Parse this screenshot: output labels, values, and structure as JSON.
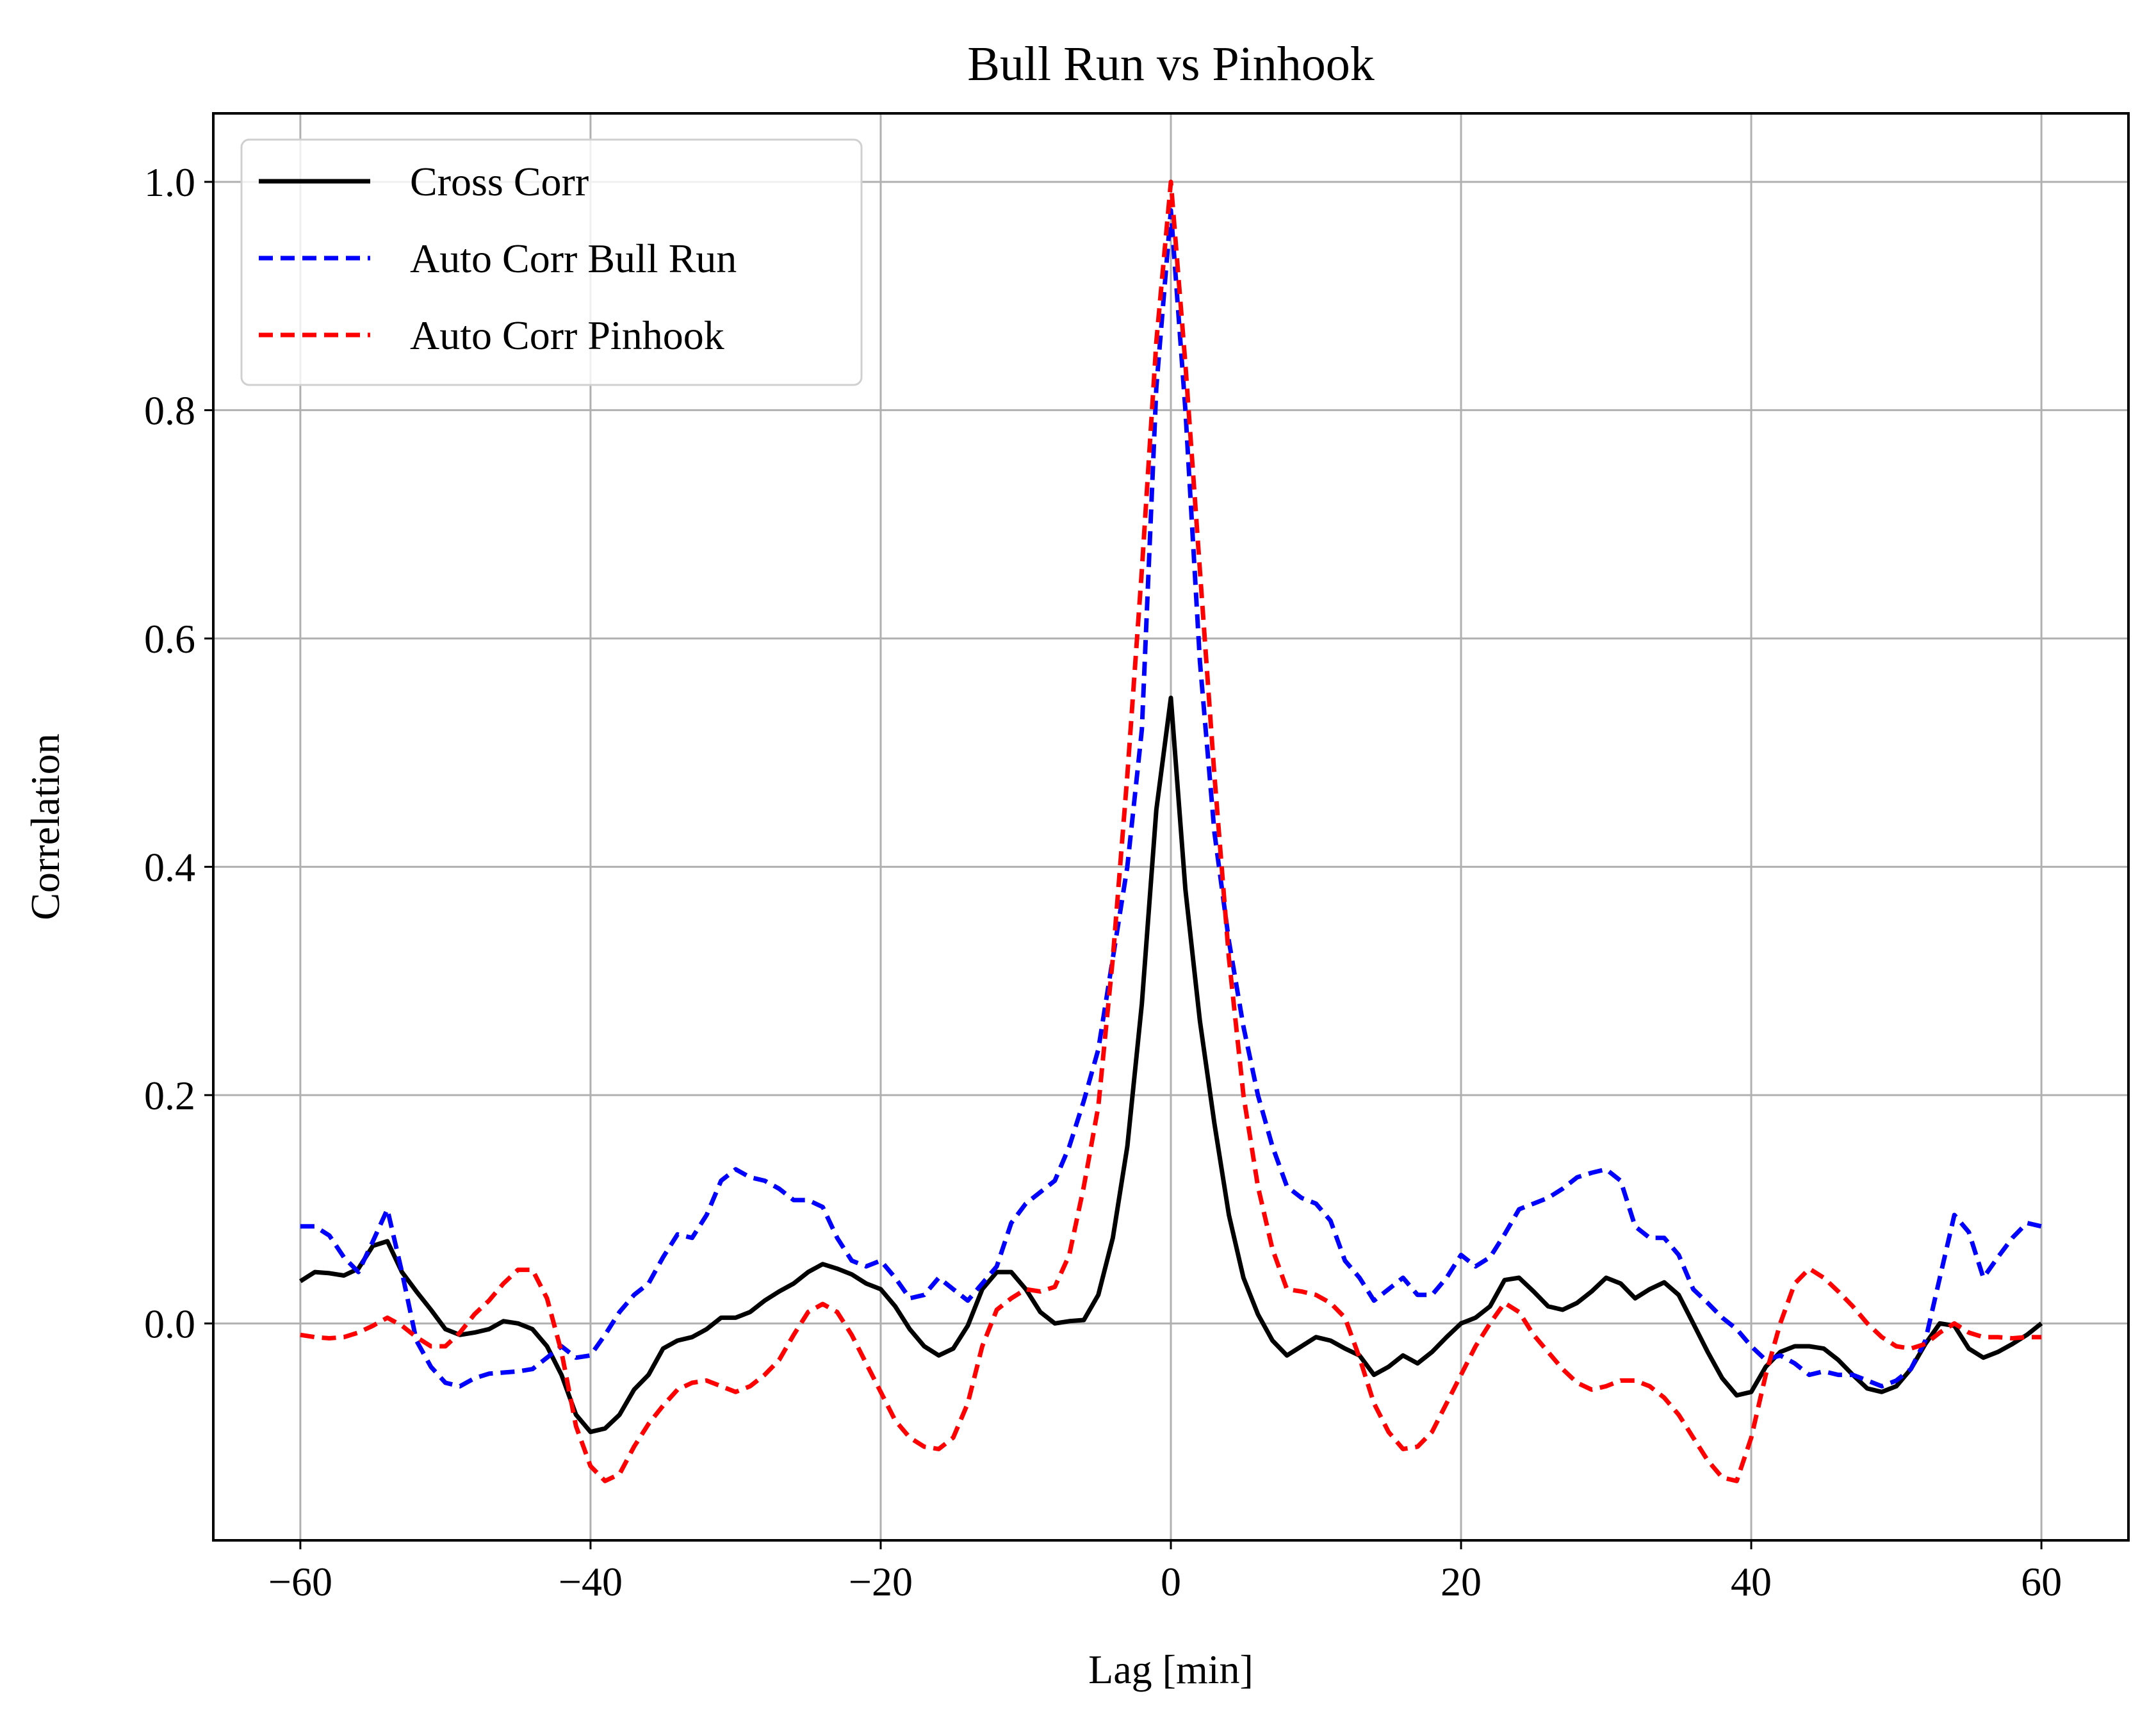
{
  "chart_data": {
    "type": "line",
    "title": "Bull Run vs Pinhook",
    "xlabel": "Lag [min]",
    "ylabel": "Correlation",
    "xlim": [
      -66,
      66
    ],
    "ylim": [
      -0.19,
      1.06
    ],
    "xticks": [
      -60,
      -40,
      -20,
      0,
      20,
      40,
      60
    ],
    "xtick_labels": [
      "−60",
      "−40",
      "−20",
      "0",
      "20",
      "40",
      "60"
    ],
    "yticks": [
      0.0,
      0.2,
      0.4,
      0.6,
      0.8,
      1.0
    ],
    "ytick_labels": [
      "0.0",
      "0.2",
      "0.4",
      "0.6",
      "0.8",
      "1.0"
    ],
    "grid": true,
    "legend_position": "upper-left",
    "series": [
      {
        "name": "Cross Corr",
        "color": "#000000",
        "style": "solid",
        "x": [
          -60,
          -59,
          -58,
          -57,
          -56,
          -55,
          -54,
          -53,
          -52,
          -51,
          -50,
          -49,
          -48,
          -47,
          -46,
          -45,
          -44,
          -43,
          -42,
          -41,
          -40,
          -39,
          -38,
          -37,
          -36,
          -35,
          -34,
          -33,
          -32,
          -31,
          -30,
          -29,
          -28,
          -27,
          -26,
          -25,
          -24,
          -23,
          -22,
          -21,
          -20,
          -19,
          -18,
          -17,
          -16,
          -15,
          -14,
          -13,
          -12,
          -11,
          -10,
          -9,
          -8,
          -7,
          -6,
          -5,
          -4,
          -3,
          -2,
          -1,
          0,
          1,
          2,
          3,
          4,
          5,
          6,
          7,
          8,
          9,
          10,
          11,
          12,
          13,
          14,
          15,
          16,
          17,
          18,
          19,
          20,
          21,
          22,
          23,
          24,
          25,
          26,
          27,
          28,
          29,
          30,
          31,
          32,
          33,
          34,
          35,
          36,
          37,
          38,
          39,
          40,
          41,
          42,
          43,
          44,
          45,
          46,
          47,
          48,
          49,
          50,
          51,
          52,
          53,
          54,
          55,
          56,
          57,
          58,
          59,
          60
        ],
        "y": [
          0.037,
          0.045,
          0.044,
          0.042,
          0.048,
          0.068,
          0.072,
          0.045,
          0.028,
          0.012,
          -0.005,
          -0.01,
          -0.008,
          -0.005,
          0.002,
          0.0,
          -0.005,
          -0.02,
          -0.045,
          -0.08,
          -0.095,
          -0.092,
          -0.08,
          -0.058,
          -0.045,
          -0.022,
          -0.015,
          -0.012,
          -0.005,
          0.005,
          0.005,
          0.01,
          0.02,
          0.028,
          0.035,
          0.045,
          0.052,
          0.048,
          0.043,
          0.035,
          0.03,
          0.015,
          -0.005,
          -0.02,
          -0.028,
          -0.022,
          -0.002,
          0.03,
          0.045,
          0.045,
          0.03,
          0.01,
          0.0,
          0.002,
          0.003,
          0.025,
          0.075,
          0.155,
          0.28,
          0.45,
          0.548,
          0.38,
          0.265,
          0.175,
          0.095,
          0.04,
          0.008,
          -0.015,
          -0.028,
          -0.02,
          -0.012,
          -0.015,
          -0.022,
          -0.028,
          -0.045,
          -0.038,
          -0.028,
          -0.035,
          -0.025,
          -0.012,
          0.0,
          0.005,
          0.015,
          0.038,
          0.04,
          0.028,
          0.015,
          0.012,
          0.018,
          0.028,
          0.04,
          0.035,
          0.022,
          0.03,
          0.036,
          0.025,
          0.0,
          -0.025,
          -0.048,
          -0.063,
          -0.06,
          -0.038,
          -0.025,
          -0.02,
          -0.02,
          -0.022,
          -0.032,
          -0.045,
          -0.057,
          -0.06,
          -0.055,
          -0.04,
          -0.018,
          0.0,
          -0.002,
          -0.022,
          -0.03,
          -0.025,
          -0.018,
          -0.01,
          0.0
        ]
      },
      {
        "name": "Auto Corr Bull Run",
        "color": "#0000ff",
        "style": "dashed",
        "x": [
          -60,
          -59,
          -58,
          -57,
          -56,
          -55,
          -54,
          -53,
          -52,
          -51,
          -50,
          -49,
          -48,
          -47,
          -46,
          -45,
          -44,
          -43,
          -42,
          -41,
          -40,
          -39,
          -38,
          -37,
          -36,
          -35,
          -34,
          -33,
          -32,
          -31,
          -30,
          -29,
          -28,
          -27,
          -26,
          -25,
          -24,
          -23,
          -22,
          -21,
          -20,
          -19,
          -18,
          -17,
          -16,
          -15,
          -14,
          -13,
          -12,
          -11,
          -10,
          -9,
          -8,
          -7,
          -6,
          -5,
          -4,
          -3,
          -2,
          -1,
          0,
          1,
          2,
          3,
          4,
          5,
          6,
          7,
          8,
          9,
          10,
          11,
          12,
          13,
          14,
          15,
          16,
          17,
          18,
          19,
          20,
          21,
          22,
          23,
          24,
          25,
          26,
          27,
          28,
          29,
          30,
          31,
          32,
          33,
          34,
          35,
          36,
          37,
          38,
          39,
          40,
          41,
          42,
          43,
          44,
          45,
          46,
          47,
          48,
          49,
          50,
          51,
          52,
          53,
          54,
          55,
          56,
          57,
          58,
          59,
          60
        ],
        "y": [
          0.085,
          0.085,
          0.077,
          0.058,
          0.045,
          0.072,
          0.1,
          0.045,
          -0.015,
          -0.038,
          -0.052,
          -0.055,
          -0.048,
          -0.044,
          -0.043,
          -0.042,
          -0.04,
          -0.03,
          -0.02,
          -0.03,
          -0.028,
          -0.01,
          0.01,
          0.025,
          0.035,
          0.058,
          0.078,
          0.075,
          0.095,
          0.125,
          0.135,
          0.128,
          0.125,
          0.118,
          0.108,
          0.108,
          0.102,
          0.075,
          0.055,
          0.05,
          0.055,
          0.04,
          0.022,
          0.025,
          0.04,
          0.03,
          0.02,
          0.035,
          0.05,
          0.088,
          0.105,
          0.115,
          0.125,
          0.155,
          0.195,
          0.24,
          0.32,
          0.4,
          0.52,
          0.82,
          0.975,
          0.8,
          0.58,
          0.43,
          0.335,
          0.26,
          0.2,
          0.155,
          0.12,
          0.11,
          0.105,
          0.09,
          0.055,
          0.04,
          0.02,
          0.03,
          0.04,
          0.025,
          0.025,
          0.04,
          0.06,
          0.05,
          0.058,
          0.078,
          0.1,
          0.105,
          0.11,
          0.118,
          0.128,
          0.132,
          0.135,
          0.125,
          0.085,
          0.075,
          0.075,
          0.06,
          0.03,
          0.018,
          0.005,
          -0.005,
          -0.02,
          -0.032,
          -0.028,
          -0.035,
          -0.045,
          -0.042,
          -0.045,
          -0.045,
          -0.05,
          -0.055,
          -0.05,
          -0.04,
          -0.015,
          0.04,
          0.095,
          0.08,
          0.04,
          0.058,
          0.075,
          0.088,
          0.085
        ]
      },
      {
        "name": "Auto Corr Pinhook",
        "color": "#ff0000",
        "style": "dashed",
        "x": [
          -60,
          -59,
          -58,
          -57,
          -56,
          -55,
          -54,
          -53,
          -52,
          -51,
          -50,
          -49,
          -48,
          -47,
          -46,
          -45,
          -44,
          -43,
          -42,
          -41,
          -40,
          -39,
          -38,
          -37,
          -36,
          -35,
          -34,
          -33,
          -32,
          -31,
          -30,
          -29,
          -28,
          -27,
          -26,
          -25,
          -24,
          -23,
          -22,
          -21,
          -20,
          -19,
          -18,
          -17,
          -16,
          -15,
          -14,
          -13,
          -12,
          -11,
          -10,
          -9,
          -8,
          -7,
          -6,
          -5,
          -4,
          -3,
          -2,
          -1,
          0,
          1,
          2,
          3,
          4,
          5,
          6,
          7,
          8,
          9,
          10,
          11,
          12,
          13,
          14,
          15,
          16,
          17,
          18,
          19,
          20,
          21,
          22,
          23,
          24,
          25,
          26,
          27,
          28,
          29,
          30,
          31,
          32,
          33,
          34,
          35,
          36,
          37,
          38,
          39,
          40,
          41,
          42,
          43,
          44,
          45,
          46,
          47,
          48,
          49,
          50,
          51,
          52,
          53,
          54,
          55,
          56,
          57,
          58,
          59,
          60
        ],
        "y": [
          -0.01,
          -0.012,
          -0.013,
          -0.012,
          -0.008,
          -0.002,
          0.005,
          -0.002,
          -0.012,
          -0.02,
          -0.02,
          -0.008,
          0.008,
          0.02,
          0.035,
          0.047,
          0.047,
          0.022,
          -0.025,
          -0.09,
          -0.125,
          -0.138,
          -0.132,
          -0.108,
          -0.088,
          -0.072,
          -0.058,
          -0.052,
          -0.05,
          -0.055,
          -0.06,
          -0.055,
          -0.045,
          -0.032,
          -0.01,
          0.01,
          0.017,
          0.01,
          -0.01,
          -0.035,
          -0.06,
          -0.085,
          -0.1,
          -0.108,
          -0.11,
          -0.1,
          -0.07,
          -0.02,
          0.012,
          0.022,
          0.03,
          0.028,
          0.032,
          0.06,
          0.12,
          0.19,
          0.32,
          0.48,
          0.66,
          0.86,
          1.0,
          0.84,
          0.66,
          0.48,
          0.32,
          0.2,
          0.12,
          0.065,
          0.03,
          0.028,
          0.025,
          0.018,
          0.005,
          -0.03,
          -0.07,
          -0.095,
          -0.11,
          -0.108,
          -0.095,
          -0.07,
          -0.045,
          -0.02,
          0.0,
          0.018,
          0.01,
          -0.01,
          -0.025,
          -0.04,
          -0.052,
          -0.058,
          -0.055,
          -0.05,
          -0.05,
          -0.055,
          -0.065,
          -0.08,
          -0.1,
          -0.12,
          -0.135,
          -0.138,
          -0.1,
          -0.045,
          0.0,
          0.035,
          0.048,
          0.04,
          0.028,
          0.015,
          0.0,
          -0.012,
          -0.02,
          -0.022,
          -0.018,
          -0.008,
          0.0,
          -0.008,
          -0.012,
          -0.012,
          -0.013,
          -0.012,
          -0.012
        ]
      }
    ]
  }
}
